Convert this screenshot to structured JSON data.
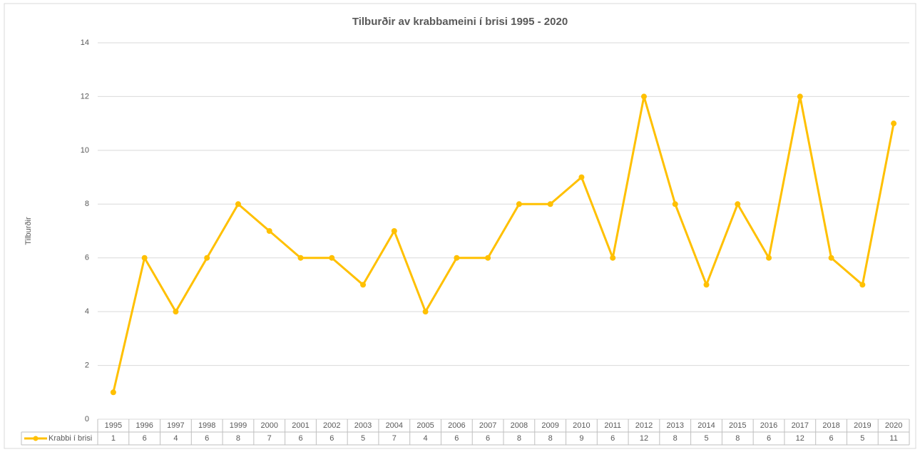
{
  "chart_data": {
    "type": "line",
    "title": "Tilburðir av krabbameini í brisi 1995 - 2020",
    "ylabel": "Tilburðir",
    "categories": [
      "1995",
      "1996",
      "1997",
      "1998",
      "1999",
      "2000",
      "2001",
      "2002",
      "2003",
      "2004",
      "2005",
      "2006",
      "2007",
      "2008",
      "2009",
      "2010",
      "2011",
      "2012",
      "2013",
      "2014",
      "2015",
      "2016",
      "2017",
      "2018",
      "2019",
      "2020"
    ],
    "series": [
      {
        "name": "Krabbi í brisi",
        "color": "#ffc000",
        "values": [
          1,
          6,
          4,
          6,
          8,
          7,
          6,
          6,
          5,
          7,
          4,
          6,
          6,
          8,
          8,
          9,
          6,
          12,
          8,
          5,
          8,
          6,
          12,
          6,
          5,
          11
        ]
      }
    ],
    "ylim": [
      0,
      14
    ],
    "yticks": [
      0,
      2,
      4,
      6,
      8,
      10,
      12,
      14
    ],
    "grid": true,
    "data_table": true
  }
}
